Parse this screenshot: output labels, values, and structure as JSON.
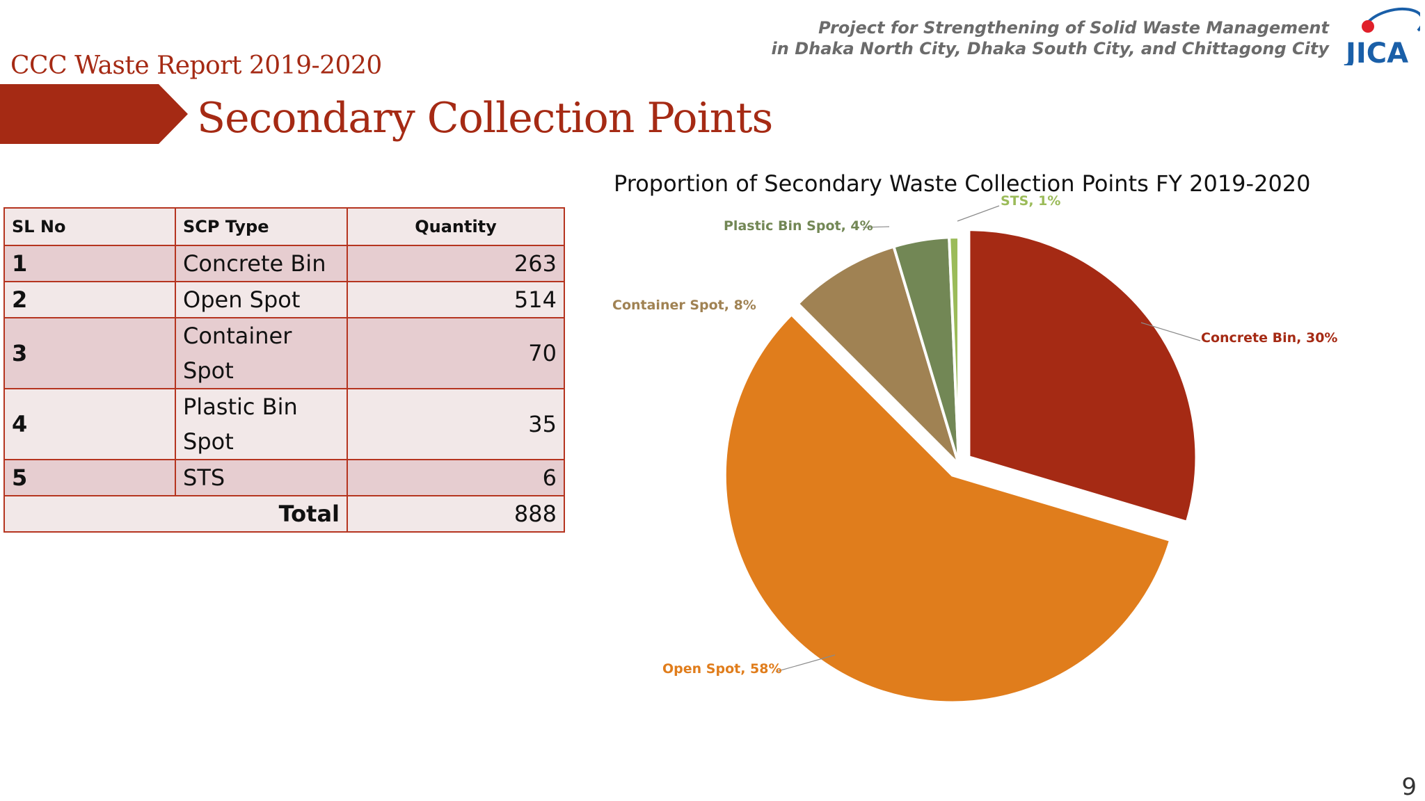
{
  "header": {
    "report_title": "CCC Waste Report 2019-2020",
    "slide_title": "Secondary Collection Points",
    "project_line1": "Project for Strengthening of Solid Waste Management",
    "project_line2": "in Dhaka North City, Dhaka South City, and Chittagong City",
    "logo_text": "JICA",
    "page_number": "9"
  },
  "colors": {
    "accent": "#a52a14",
    "table_border": "#b5341f",
    "row_dark": "#e6cdd0",
    "row_light": "#f2e8e8"
  },
  "table": {
    "headers": [
      "SL No",
      "SCP Type",
      "Quantity"
    ],
    "rows": [
      {
        "sl": "1",
        "type": "Concrete Bin",
        "quantity": "263"
      },
      {
        "sl": "2",
        "type": "Open Spot",
        "quantity": "514"
      },
      {
        "sl": "3",
        "type": "Container Spot",
        "quantity": "70"
      },
      {
        "sl": "4",
        "type": "Plastic Bin Spot",
        "quantity": "35"
      },
      {
        "sl": "5",
        "type": "STS",
        "quantity": "6"
      }
    ],
    "total_label": "Total",
    "total_value": "888"
  },
  "chart_data": {
    "type": "pie",
    "title": "Proportion of Secondary Waste Collection Points FY 2019-2020",
    "slices": [
      {
        "name": "Concrete Bin",
        "value": 263,
        "label": "Concrete Bin, 30%",
        "color": "#a52a14",
        "exploded": true
      },
      {
        "name": "Open Spot",
        "value": 514,
        "label": "Open Spot, 58%",
        "color": "#e07d1c",
        "exploded": true
      },
      {
        "name": "Container Spot",
        "value": 70,
        "label": "Container Spot, 8%",
        "color": "#a08253",
        "exploded": false
      },
      {
        "name": "Plastic Bin Spot",
        "value": 35,
        "label": "Plastic Bin Spot, 4%",
        "color": "#728755",
        "exploded": false
      },
      {
        "name": "STS",
        "value": 6,
        "label": "STS, 1%",
        "color": "#9bbb59",
        "exploded": false
      }
    ],
    "label_colors": [
      "#a52a14",
      "#e07d1c",
      "#a08253",
      "#728755",
      "#9bbb59"
    ],
    "legend": "none"
  }
}
